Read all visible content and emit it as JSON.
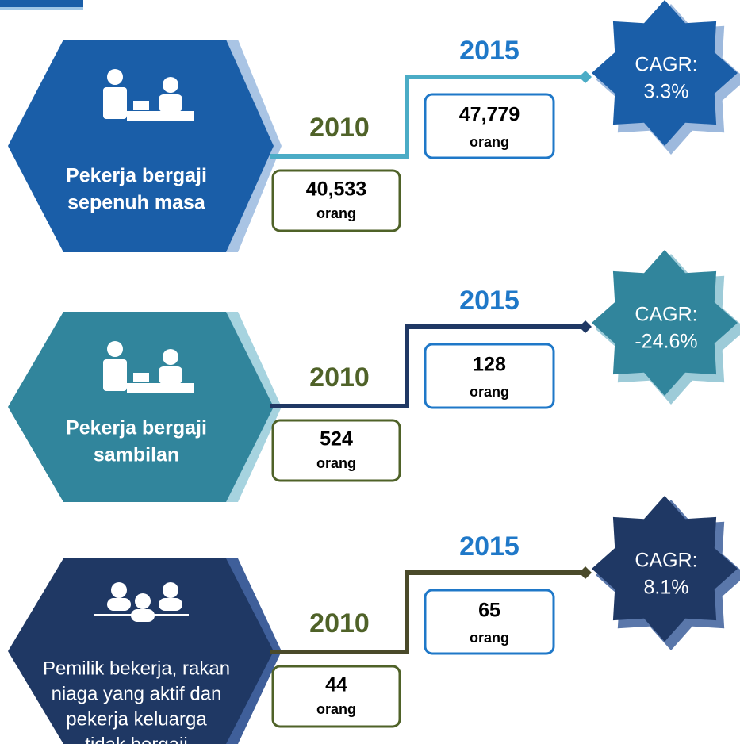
{
  "rows": [
    {
      "label": [
        "Pekerja bergaji",
        "sepenuh masa"
      ],
      "start": {
        "year": "2010",
        "value": "40,533",
        "unit": "orang"
      },
      "end": {
        "year": "2015",
        "value": "47,779",
        "unit": "orang"
      },
      "cagr": {
        "label": "CAGR:",
        "value": "3.3%"
      }
    },
    {
      "label": [
        "Pekerja bergaji",
        "sambilan"
      ],
      "start": {
        "year": "2010",
        "value": "524",
        "unit": "orang"
      },
      "end": {
        "year": "2015",
        "value": "128",
        "unit": "orang"
      },
      "cagr": {
        "label": "CAGR:",
        "value": "-24.6%"
      }
    },
    {
      "label": [
        "Pemilik bekerja, rakan",
        "niaga yang aktif dan",
        "pekerja keluarga",
        "tidak bergaji"
      ],
      "start": {
        "year": "2010",
        "value": "44",
        "unit": "orang"
      },
      "end": {
        "year": "2015",
        "value": "65",
        "unit": "orang"
      },
      "cagr": {
        "label": "CAGR:",
        "value": "8.1%"
      }
    }
  ]
}
